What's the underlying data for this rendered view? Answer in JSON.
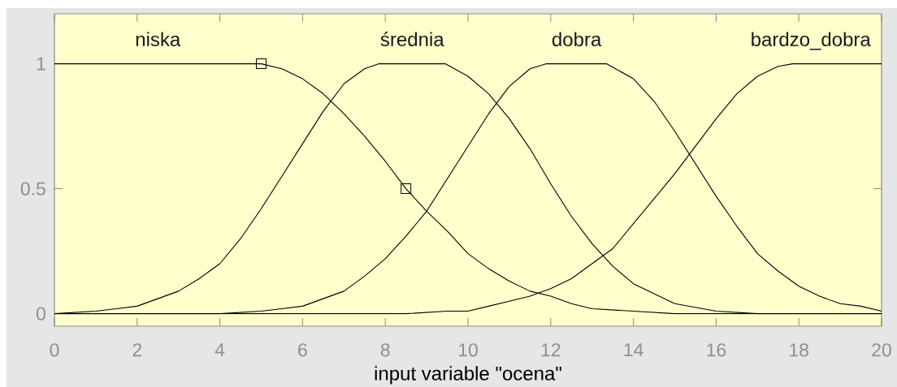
{
  "chart_data": {
    "type": "line",
    "xlabel": "input variable \"ocena\"",
    "xlim": [
      0,
      20
    ],
    "ylim": [
      -0.05,
      1.2
    ],
    "xticks": [
      0,
      2,
      4,
      6,
      8,
      10,
      12,
      14,
      16,
      18,
      20
    ],
    "yticks": [
      0,
      0.5,
      1
    ],
    "series": [
      {
        "name": "niska",
        "color": "#000000",
        "x": [
          0,
          5,
          5.5,
          6,
          6.5,
          7,
          7.5,
          8,
          8.5,
          9,
          9.5,
          10,
          10.5,
          11,
          11.5,
          12,
          12.5,
          13,
          14,
          15,
          20
        ],
        "values": [
          1,
          1,
          0.98,
          0.94,
          0.88,
          0.8,
          0.71,
          0.61,
          0.5,
          0.41,
          0.33,
          0.24,
          0.18,
          0.13,
          0.09,
          0.07,
          0.04,
          0.02,
          0.01,
          0,
          0
        ]
      },
      {
        "name": "średnia",
        "color": "#000000",
        "x": [
          0,
          1,
          1.5,
          2,
          2.5,
          3,
          3.5,
          4,
          4.5,
          5,
          5.5,
          6,
          6.5,
          7,
          7.5,
          7.85,
          9.45,
          10,
          10.5,
          11,
          11.5,
          12,
          12.5,
          13,
          13.5,
          14,
          15,
          16,
          17,
          20
        ],
        "values": [
          0,
          0.01,
          0.02,
          0.03,
          0.06,
          0.09,
          0.14,
          0.2,
          0.3,
          0.42,
          0.55,
          0.68,
          0.81,
          0.92,
          0.98,
          1,
          1,
          0.95,
          0.88,
          0.78,
          0.66,
          0.52,
          0.39,
          0.28,
          0.19,
          0.12,
          0.04,
          0.01,
          0,
          0
        ]
      },
      {
        "name": "dobra",
        "color": "#000000",
        "x": [
          0,
          4,
          5,
          5.5,
          6,
          6.5,
          7,
          7.5,
          8,
          8.5,
          9,
          9.5,
          10,
          10.5,
          11,
          11.5,
          11.9,
          13.35,
          14,
          14.5,
          15,
          15.5,
          16,
          16.5,
          17,
          17.5,
          18,
          18.5,
          19,
          19.5,
          20
        ],
        "values": [
          0,
          0,
          0.01,
          0.02,
          0.03,
          0.06,
          0.09,
          0.15,
          0.22,
          0.31,
          0.41,
          0.54,
          0.67,
          0.8,
          0.91,
          0.98,
          1,
          1,
          0.94,
          0.85,
          0.73,
          0.6,
          0.47,
          0.35,
          0.24,
          0.17,
          0.11,
          0.07,
          0.04,
          0.03,
          0.01
        ]
      },
      {
        "name": "bardzo_dobra",
        "color": "#000000",
        "x": [
          0,
          8.5,
          9.5,
          10,
          10.5,
          11,
          11.5,
          12,
          12.5,
          13,
          13.5,
          14,
          14.5,
          15,
          15.5,
          16,
          16.5,
          17,
          17.5,
          17.85,
          20
        ],
        "values": [
          0,
          0,
          0.01,
          0.01,
          0.03,
          0.05,
          0.07,
          0.1,
          0.14,
          0.2,
          0.26,
          0.36,
          0.46,
          0.56,
          0.67,
          0.78,
          0.88,
          0.95,
          0.99,
          1,
          1
        ]
      },
      {
        "type": "scatter",
        "marker": "square",
        "color": "#000000",
        "x": [
          5,
          8.5
        ],
        "values": [
          1,
          0.5
        ]
      }
    ]
  }
}
